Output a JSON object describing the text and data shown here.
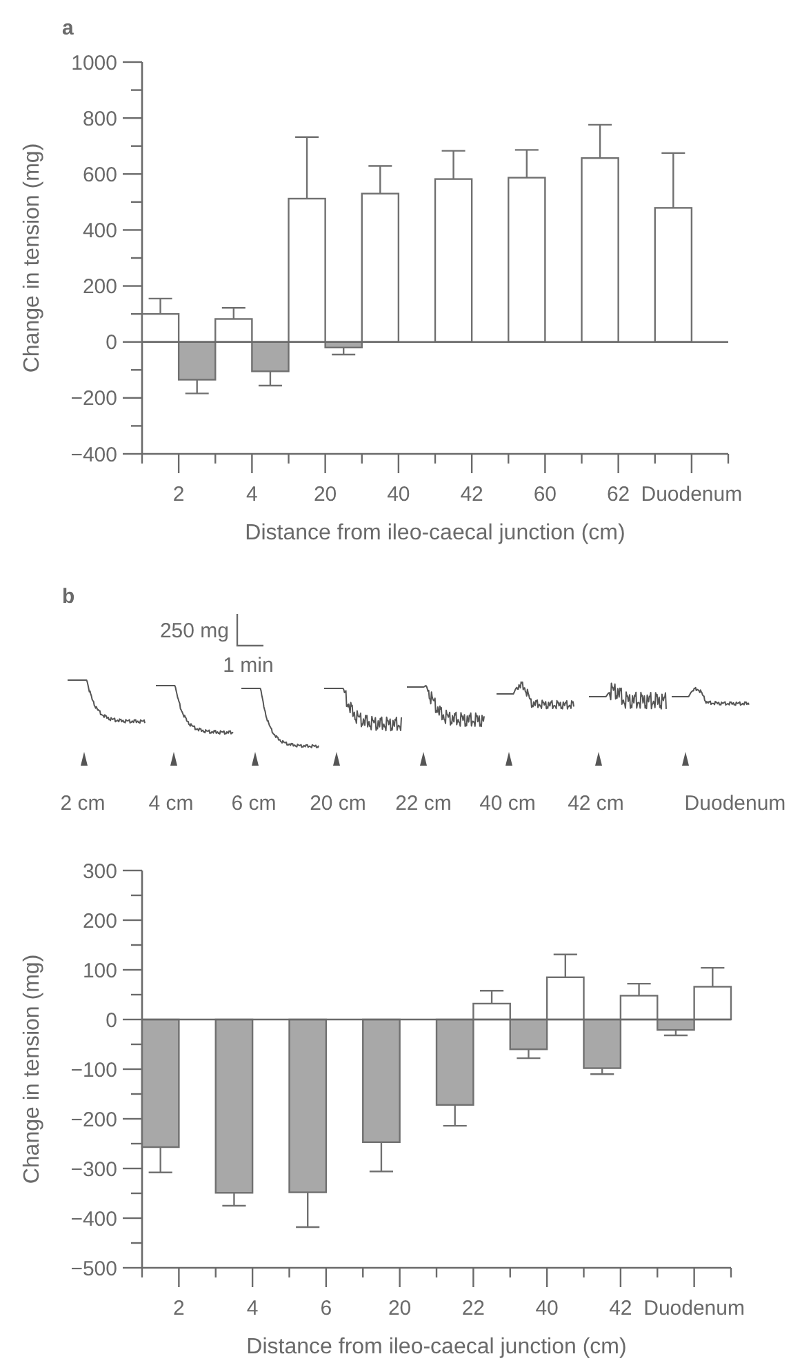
{
  "chart_data": [
    {
      "type": "bar",
      "title": "a",
      "xlabel": "Distance from ileo-caecal junction (cm)",
      "ylabel": "Change in tension (mg)",
      "categories": [
        "2",
        "4",
        "20",
        "40",
        "42",
        "60",
        "62",
        "Duodenum"
      ],
      "series": [
        {
          "color": "#ffffff",
          "values": [
            100,
            82,
            512,
            530,
            582,
            587,
            657,
            479
          ],
          "errors": [
            [
              100,
              155
            ],
            [
              82,
              122
            ],
            [
              512,
              732
            ],
            [
              530,
              629
            ],
            [
              582,
              683
            ],
            [
              587,
              686
            ],
            [
              657,
              776
            ],
            [
              479,
              675
            ]
          ]
        },
        {
          "color": "#a8a8a8",
          "values": [
            -135,
            -105,
            -20,
            null,
            null,
            null,
            null,
            null
          ],
          "errors": [
            [
              -184,
              -135
            ],
            [
              -156,
              -105
            ],
            [
              -45,
              -20
            ],
            null,
            null,
            null,
            null,
            null
          ]
        }
      ],
      "ylim": [
        -400,
        1000
      ],
      "yticks": [
        {
          "value": -400,
          "label": "−400"
        },
        {
          "value": -300,
          "label": null
        },
        {
          "value": -200,
          "label": "−200"
        },
        {
          "value": -100,
          "label": null
        },
        0,
        {
          "value": 100,
          "label": null
        },
        200,
        {
          "value": 300,
          "label": null
        },
        400,
        {
          "value": 500,
          "label": null
        },
        600,
        {
          "value": 700,
          "label": null
        },
        800,
        {
          "value": 900,
          "label": null
        },
        1000
      ]
    },
    {
      "type": "other",
      "title": "b",
      "annotations": [
        "250 mg",
        "1 min",
        "2 cm",
        "4 cm",
        "6 cm",
        "20 cm",
        "22 cm",
        "40 cm",
        "42 cm",
        "Duodenum"
      ]
    },
    {
      "type": "bar",
      "xlabel": "Distance from ileo-caecal junction (cm)",
      "ylabel": "Change in tension (mg)",
      "categories": [
        "2",
        "4",
        "6",
        "20",
        "22",
        "40",
        "42",
        "Duodenum"
      ],
      "series": [
        {
          "color": "#a8a8a8",
          "values": [
            -257,
            -349,
            -348,
            -247,
            -172,
            -60,
            -98,
            -21
          ],
          "errors": [
            [
              -308,
              -257
            ],
            [
              -375,
              -349
            ],
            [
              -418,
              -348
            ],
            [
              -306,
              -247
            ],
            [
              -214,
              -172
            ],
            [
              -78,
              -60
            ],
            [
              -110,
              -98
            ],
            [
              -32,
              -21
            ]
          ]
        },
        {
          "color": "#ffffff",
          "values": [
            null,
            null,
            null,
            null,
            32,
            85,
            48,
            66
          ],
          "errors": [
            null,
            null,
            null,
            null,
            [
              32,
              58
            ],
            [
              85,
              131
            ],
            [
              48,
              72
            ],
            [
              66,
              104
            ]
          ]
        }
      ],
      "ylim": [
        -500,
        300
      ],
      "yticks": [
        {
          "value": -500,
          "label": "−500"
        },
        {
          "value": -450,
          "label": null
        },
        {
          "value": -400,
          "label": "−400"
        },
        {
          "value": -350,
          "label": null
        },
        {
          "value": -300,
          "label": "−300"
        },
        {
          "value": -250,
          "label": null
        },
        {
          "value": -200,
          "label": "−200"
        },
        {
          "value": -150,
          "label": null
        },
        {
          "value": -100,
          "label": "−100"
        },
        {
          "value": -50,
          "label": null
        },
        0,
        {
          "value": 50,
          "label": null
        },
        100,
        {
          "value": 150,
          "label": null
        },
        200,
        {
          "value": 250,
          "label": null
        },
        300
      ]
    }
  ]
}
